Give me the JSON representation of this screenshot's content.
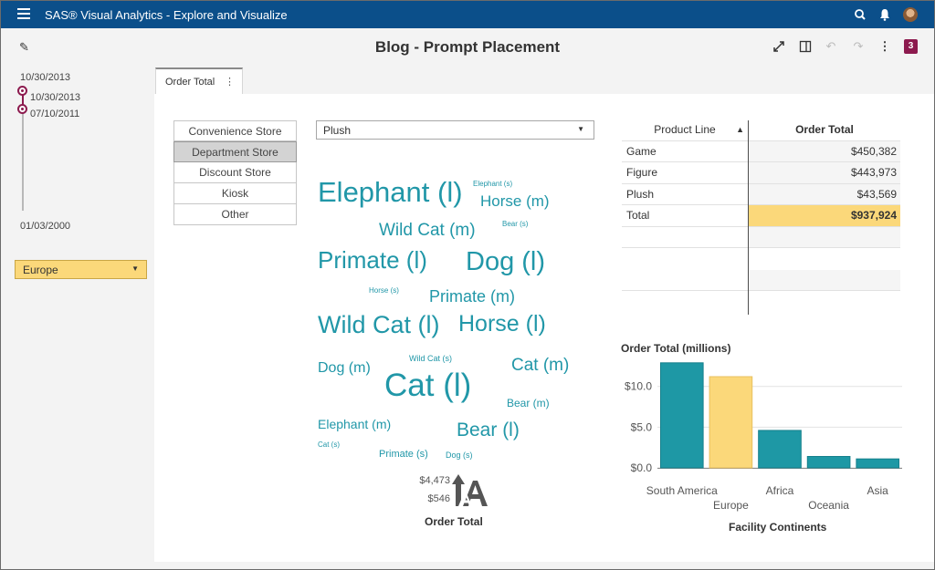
{
  "app": {
    "title": "SAS® Visual Analytics - Explore and Visualize"
  },
  "report": {
    "title": "Blog - Prompt Placement",
    "badge": "3"
  },
  "left_panel": {
    "date_top": "10/30/2013",
    "handle_high_label": "10/30/2013",
    "handle_low_label": "07/10/2011",
    "date_bottom": "01/03/2000",
    "region_dropdown": "Europe"
  },
  "tabs": [
    {
      "label": "Order Total"
    }
  ],
  "store_buttons": [
    {
      "label": "Convenience Store"
    },
    {
      "label": "Department Store"
    },
    {
      "label": "Discount Store"
    },
    {
      "label": "Kiosk"
    },
    {
      "label": "Other"
    }
  ],
  "product_dropdown": "Plush",
  "word_cloud": {
    "words": [
      "Elephant (l)",
      "Elephant (s)",
      "Horse (m)",
      "Bear (s)",
      "Wild Cat (m)",
      "Primate (l)",
      "Dog (l)",
      "Horse (s)",
      "Primate (m)",
      "Wild Cat (l)",
      "Horse (l)",
      "Wild Cat (s)",
      "Dog (m)",
      "Cat (l)",
      "Cat (m)",
      "Bear (m)",
      "Elephant (m)",
      "Bear (l)",
      "Cat (s)",
      "Primate (s)",
      "Dog (s)"
    ],
    "legend_max": "$4,473",
    "legend_min": "$546",
    "legend_title": "Order Total"
  },
  "table": {
    "headers": [
      "Product Line",
      "Order Total"
    ],
    "rows": [
      {
        "product": "Game",
        "total": "$450,382"
      },
      {
        "product": "Figure",
        "total": "$443,973"
      },
      {
        "product": "Plush",
        "total": "$43,569"
      },
      {
        "product": "Total",
        "total": "$937,924"
      }
    ]
  },
  "colors": {
    "teal": "#2197a8",
    "highlight": "#fbd87a",
    "header": "#0b4f8a",
    "accent": "#8c1a4e"
  },
  "chart_data": {
    "type": "bar",
    "title": "Order Total (millions)",
    "xlabel": "Facility Continents",
    "ylabel": "",
    "categories": [
      "South America",
      "Europe",
      "Africa",
      "Oceania",
      "Asia"
    ],
    "values": [
      12.9,
      11.2,
      4.6,
      1.4,
      1.1
    ],
    "highlighted": "Europe",
    "yticks": [
      "$0.0",
      "$5.0",
      "$10.0"
    ],
    "ylim": [
      0,
      14
    ]
  }
}
